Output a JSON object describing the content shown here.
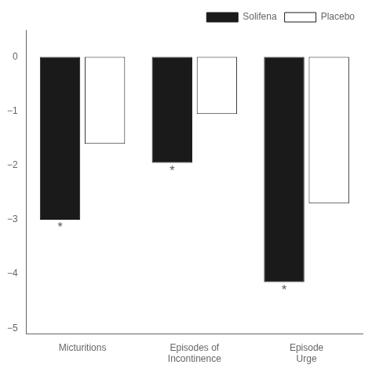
{
  "chart_data": {
    "type": "bar",
    "categories": [
      "Micturitions",
      "Episodes of\nIncontinence",
      "Episode\nUrge"
    ],
    "series": [
      {
        "name": "Solifena",
        "color": "#1a1a1a",
        "values": [
          -3.0,
          -1.95,
          -4.15
        ]
      },
      {
        "name": "Placebo",
        "color": "#ffffff",
        "values": [
          -1.6,
          -1.05,
          -2.7
        ]
      }
    ],
    "ylim": [
      -5.1,
      0.5
    ],
    "yticks": [
      {
        "value": 0,
        "label": "0"
      },
      {
        "value": -1,
        "label": "−1"
      },
      {
        "value": -2,
        "label": "−2"
      },
      {
        "value": -3,
        "label": "−3"
      },
      {
        "value": -4,
        "label": "−4"
      },
      {
        "value": -5,
        "label": "−5"
      }
    ],
    "annotations": [
      {
        "text": "*",
        "series": "Solifena",
        "category": "Micturitions"
      },
      {
        "text": "*",
        "series": "Solifena",
        "category": "Episodes of\nIncontinence"
      },
      {
        "text": "*",
        "series": "Solifena",
        "category": "Episode\nUrge"
      }
    ],
    "grid": false,
    "legend": "upper right"
  }
}
